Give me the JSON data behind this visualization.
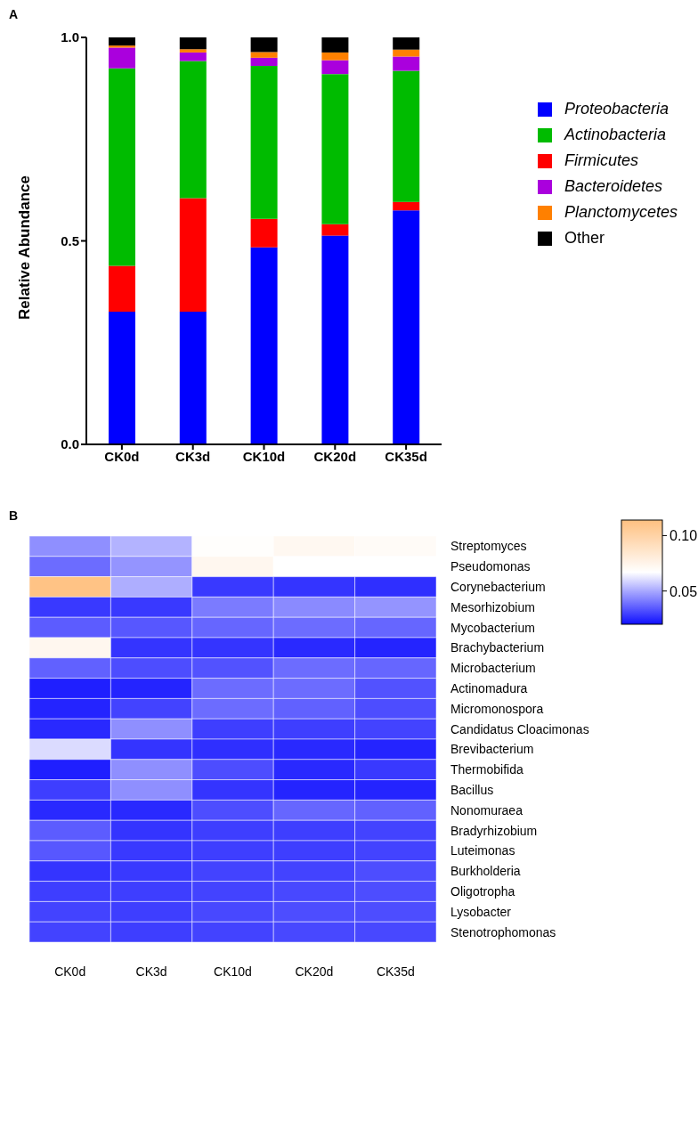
{
  "chart_data": [
    {
      "type": "bar",
      "title": "A",
      "ylabel": "Relative Abundance",
      "stacked": true,
      "categories": [
        "CK0d",
        "CK3d",
        "CK10d",
        "CK20d",
        "CK35d"
      ],
      "series": [
        {
          "name": "Proteobacteria",
          "color": "#0000ff",
          "values": [
            0.326,
            0.326,
            0.484,
            0.513,
            0.575
          ]
        },
        {
          "name": "Firmicutes",
          "color": "#ff0000",
          "values": [
            0.113,
            0.279,
            0.07,
            0.028,
            0.021
          ]
        },
        {
          "name": "Actinobacteria",
          "color": "#00bb00",
          "values": [
            0.485,
            0.337,
            0.376,
            0.369,
            0.322
          ]
        },
        {
          "name": "Bacteroidetes",
          "color": "#aa00dd",
          "values": [
            0.051,
            0.021,
            0.02,
            0.034,
            0.035
          ]
        },
        {
          "name": "Planctomycetes",
          "color": "#ff8000",
          "values": [
            0.005,
            0.008,
            0.014,
            0.019,
            0.017
          ]
        },
        {
          "name": "Other",
          "color": "#000000",
          "values": [
            0.02,
            0.029,
            0.036,
            0.037,
            0.03
          ]
        }
      ],
      "ylim": [
        0,
        1
      ],
      "yticks": [
        {
          "value": 0,
          "label": "0.0"
        },
        {
          "value": 0.5,
          "label": "0.5"
        },
        {
          "value": 1,
          "label": "1.0"
        }
      ],
      "legend": "right"
    },
    {
      "type": "heatmap",
      "title": "B",
      "categories": [
        "CK0d",
        "CK3d",
        "CK10d",
        "CK20d",
        "CK35d"
      ],
      "y_categories": [
        "Streptomyces",
        "Pseudomonas",
        "Corynebacterium",
        "Mesorhizobium",
        "Mycobacterium",
        "Brachybacterium",
        "Microbacterium",
        "Actinomadura",
        "Micromonospora",
        "Candidatus Cloacimonas",
        "Brevibacterium",
        "Thermobifida",
        "Bacillus",
        "Nonomuraea",
        "Bradyrhizobium",
        "Luteimonas",
        "Burkholderia",
        "Oligotropha",
        "Lysobacter",
        "Stenotrophomonas"
      ],
      "cells": [
        [
          0.045,
          0.052,
          0.068,
          0.072,
          0.07
        ],
        [
          0.038,
          0.046,
          0.073,
          0.067,
          0.067
        ],
        [
          0.112,
          0.051,
          0.028,
          0.027,
          0.026
        ],
        [
          0.028,
          0.028,
          0.041,
          0.044,
          0.046
        ],
        [
          0.035,
          0.034,
          0.037,
          0.038,
          0.037
        ],
        [
          0.073,
          0.027,
          0.027,
          0.025,
          0.024
        ],
        [
          0.036,
          0.032,
          0.033,
          0.038,
          0.037
        ],
        [
          0.023,
          0.024,
          0.038,
          0.038,
          0.033
        ],
        [
          0.024,
          0.03,
          0.038,
          0.036,
          0.032
        ],
        [
          0.025,
          0.045,
          0.029,
          0.029,
          0.03
        ],
        [
          0.06,
          0.027,
          0.026,
          0.025,
          0.024
        ],
        [
          0.023,
          0.045,
          0.032,
          0.025,
          0.028
        ],
        [
          0.029,
          0.045,
          0.027,
          0.024,
          0.024
        ],
        [
          0.025,
          0.025,
          0.032,
          0.037,
          0.036
        ],
        [
          0.035,
          0.027,
          0.029,
          0.029,
          0.03
        ],
        [
          0.034,
          0.028,
          0.029,
          0.029,
          0.03
        ],
        [
          0.027,
          0.028,
          0.03,
          0.03,
          0.032
        ],
        [
          0.029,
          0.029,
          0.03,
          0.031,
          0.032
        ],
        [
          0.03,
          0.029,
          0.031,
          0.032,
          0.032
        ],
        [
          0.03,
          0.029,
          0.03,
          0.031,
          0.031
        ]
      ],
      "clim": [
        0.02,
        0.114
      ],
      "cticks": [
        {
          "value": 0.05,
          "label": "0.05"
        },
        {
          "value": 0.1,
          "label": "0.10"
        }
      ]
    }
  ]
}
